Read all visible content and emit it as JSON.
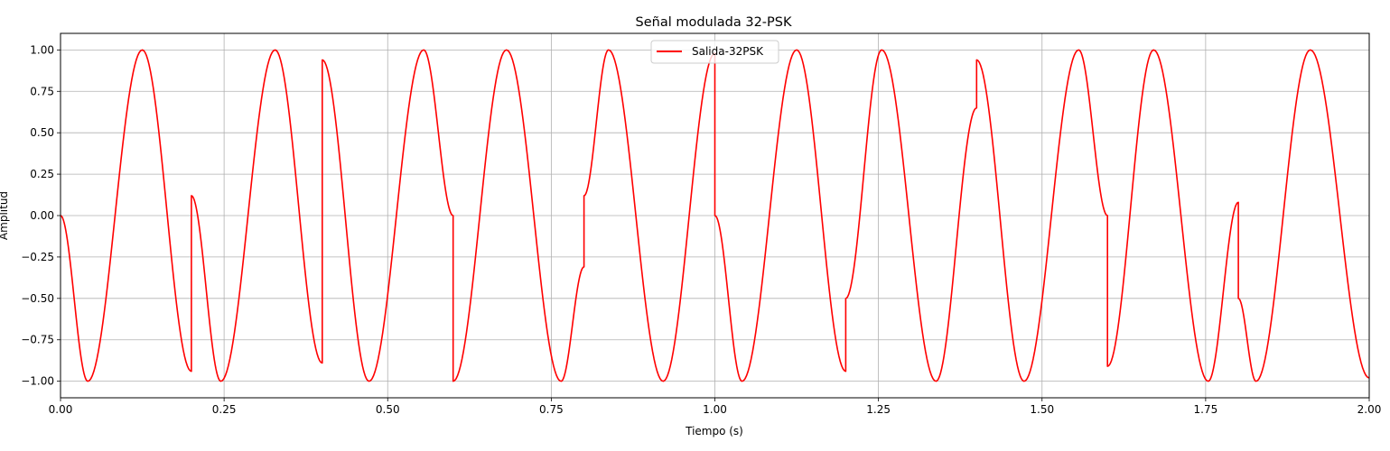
{
  "chart_data": {
    "type": "line",
    "title": "Señal modulada 32-PSK",
    "xlabel": "Tiempo (s)",
    "ylabel": "Amplitud",
    "xlim": [
      0,
      2.0
    ],
    "ylim": [
      -1.1,
      1.1
    ],
    "xticks": [
      0.0,
      0.25,
      0.5,
      0.75,
      1.0,
      1.25,
      1.5,
      1.75,
      2.0
    ],
    "xtick_labels": [
      "0.00",
      "0.25",
      "0.50",
      "0.75",
      "1.00",
      "1.25",
      "1.50",
      "1.75",
      "2.00"
    ],
    "yticks": [
      -1.0,
      -0.75,
      -0.5,
      -0.25,
      0.0,
      0.25,
      0.5,
      0.75,
      1.0
    ],
    "ytick_labels": [
      "−1.00",
      "−0.75",
      "−0.50",
      "−0.25",
      "0.00",
      "0.25",
      "0.50",
      "0.75",
      "1.00"
    ],
    "grid": true,
    "legend_position": "top-center",
    "series": [
      {
        "name": "Salida-32PSK",
        "color": "#ff0000",
        "x": [
          0.0,
          0.0417,
          0.125,
          0.2,
          0.2,
          0.245,
          0.328,
          0.4,
          0.4,
          0.4715,
          0.555,
          0.6,
          0.6,
          0.6815,
          0.765,
          0.8,
          0.8,
          0.8375,
          0.921,
          1.0,
          1.0,
          1.0415,
          1.125,
          1.2,
          1.2,
          1.255,
          1.338,
          1.4,
          1.4,
          1.4725,
          1.556,
          1.6,
          1.6,
          1.6705,
          1.754,
          1.8,
          1.8,
          1.827,
          1.91,
          2.0
        ],
        "y": [
          0.0,
          -1.0,
          1.0,
          -0.94,
          0.12,
          -1.0,
          1.0,
          -0.89,
          0.94,
          -1.0,
          1.0,
          0.0,
          -1.0,
          1.0,
          -1.0,
          -0.31,
          0.12,
          1.0,
          -1.0,
          0.98,
          0.0,
          -1.0,
          1.0,
          -0.94,
          -0.5,
          1.0,
          -1.0,
          0.65,
          0.94,
          -1.0,
          1.0,
          0.0,
          -0.91,
          1.0,
          -1.0,
          0.08,
          -0.5,
          -1.0,
          1.0,
          -0.98
        ]
      }
    ]
  }
}
